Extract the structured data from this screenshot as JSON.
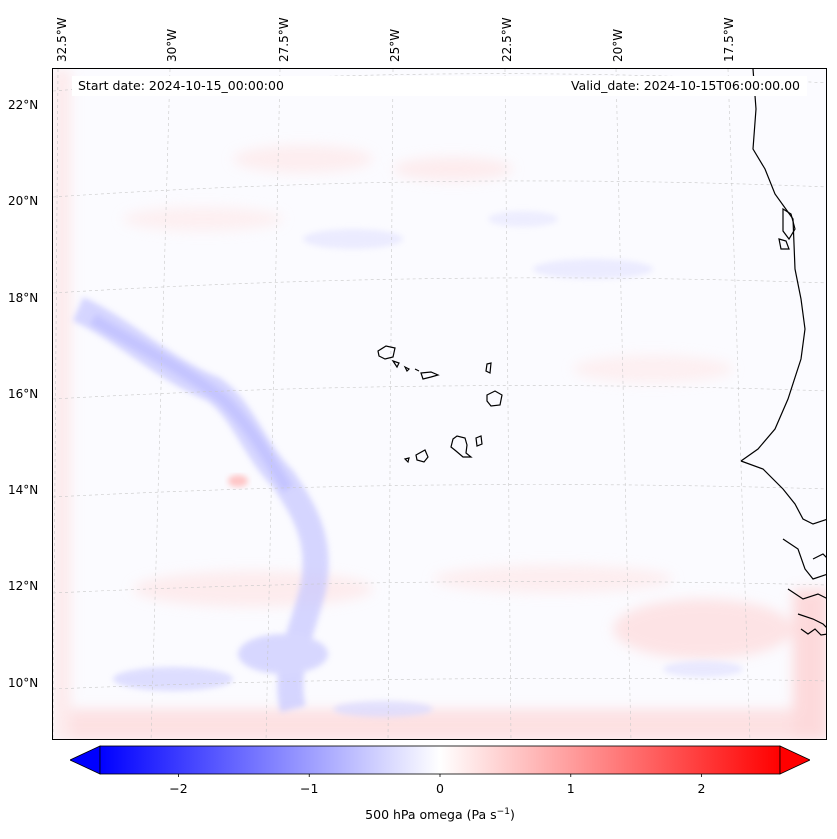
{
  "map": {
    "variable_label": "500 hPa omega",
    "unit_base": "Pa s",
    "unit_exp": "−1",
    "start_date": "Start date: 2024-10-15_00:00:00",
    "valid_date": "Valid_date: 2024-10-15T06:00:00.00",
    "lon_labels": [
      "32.5°W",
      "30°W",
      "27.5°W",
      "25°W",
      "22.5°W",
      "20°W",
      "17.5°W"
    ],
    "lat_labels": [
      "22°N",
      "20°N",
      "18°N",
      "16°N",
      "14°N",
      "12°N",
      "10°N"
    ],
    "colorbar": {
      "min": -2.6,
      "max": 2.6,
      "ticks": [
        "−2",
        "−1",
        "0",
        "1",
        "2"
      ],
      "tick_values": [
        -2,
        -1,
        0,
        1,
        2
      ],
      "low_color": "#0000ff",
      "mid_color": "#ffffff",
      "high_color": "#ff0000",
      "extend": "both"
    }
  }
}
